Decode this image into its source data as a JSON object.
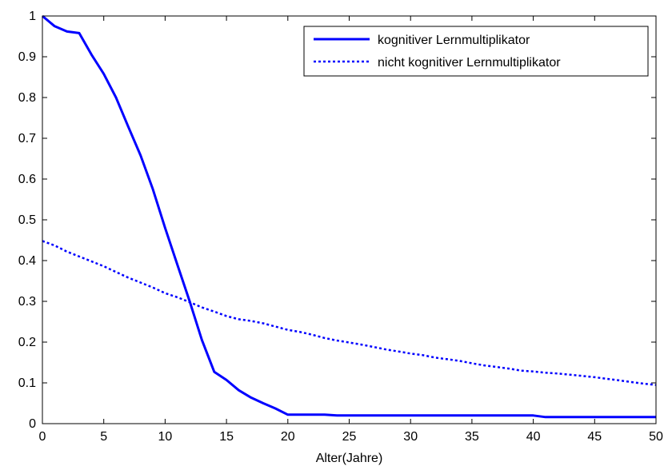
{
  "chart_data": {
    "type": "line",
    "title": "",
    "xlabel": "Alter(Jahre)",
    "ylabel": "",
    "xlim": [
      0,
      50
    ],
    "ylim": [
      0,
      1
    ],
    "xticks": [
      "0",
      "5",
      "10",
      "15",
      "20",
      "25",
      "30",
      "35",
      "40",
      "45",
      "50"
    ],
    "yticks": [
      "0",
      "0.1",
      "0.2",
      "0.3",
      "0.4",
      "0.5",
      "0.6",
      "0.7",
      "0.8",
      "0.9",
      "1"
    ],
    "grid": false,
    "legend_position": "top-right",
    "series": [
      {
        "name": "kognitiver Lernmultiplikator",
        "style": "solid",
        "color": "#0000ff",
        "x": [
          0,
          1,
          2,
          3,
          4,
          5,
          6,
          7,
          8,
          9,
          10,
          11,
          12,
          13,
          14,
          15,
          16,
          17,
          18,
          19,
          20,
          21,
          22,
          23,
          24,
          25,
          30,
          35,
          40,
          41,
          45,
          50
        ],
        "y": [
          1.0,
          0.975,
          0.962,
          0.958,
          0.905,
          0.858,
          0.8,
          0.728,
          0.658,
          0.575,
          0.48,
          0.39,
          0.3,
          0.205,
          0.127,
          0.107,
          0.082,
          0.064,
          0.05,
          0.037,
          0.022,
          0.022,
          0.022,
          0.022,
          0.02,
          0.02,
          0.02,
          0.02,
          0.02,
          0.016,
          0.016,
          0.016
        ]
      },
      {
        "name": "nicht kognitiver Lernmultiplikator",
        "style": "dotted",
        "color": "#0000ff",
        "x": [
          0,
          1,
          2,
          3,
          4,
          5,
          6,
          7,
          8,
          9,
          10,
          11,
          12,
          13,
          14,
          15,
          16,
          17,
          18,
          19,
          20,
          21,
          22,
          23,
          24,
          25,
          26,
          27,
          28,
          29,
          30,
          31,
          32,
          33,
          34,
          35,
          36,
          37,
          38,
          39,
          40,
          41,
          42,
          43,
          44,
          45,
          46,
          47,
          48,
          49,
          50
        ],
        "y": [
          0.448,
          0.437,
          0.422,
          0.41,
          0.398,
          0.386,
          0.372,
          0.358,
          0.346,
          0.334,
          0.32,
          0.31,
          0.298,
          0.285,
          0.275,
          0.264,
          0.256,
          0.252,
          0.246,
          0.238,
          0.23,
          0.225,
          0.218,
          0.21,
          0.204,
          0.199,
          0.194,
          0.188,
          0.182,
          0.177,
          0.172,
          0.168,
          0.162,
          0.158,
          0.154,
          0.148,
          0.143,
          0.139,
          0.135,
          0.13,
          0.128,
          0.125,
          0.123,
          0.12,
          0.117,
          0.114,
          0.11,
          0.106,
          0.102,
          0.098,
          0.095
        ]
      }
    ]
  }
}
